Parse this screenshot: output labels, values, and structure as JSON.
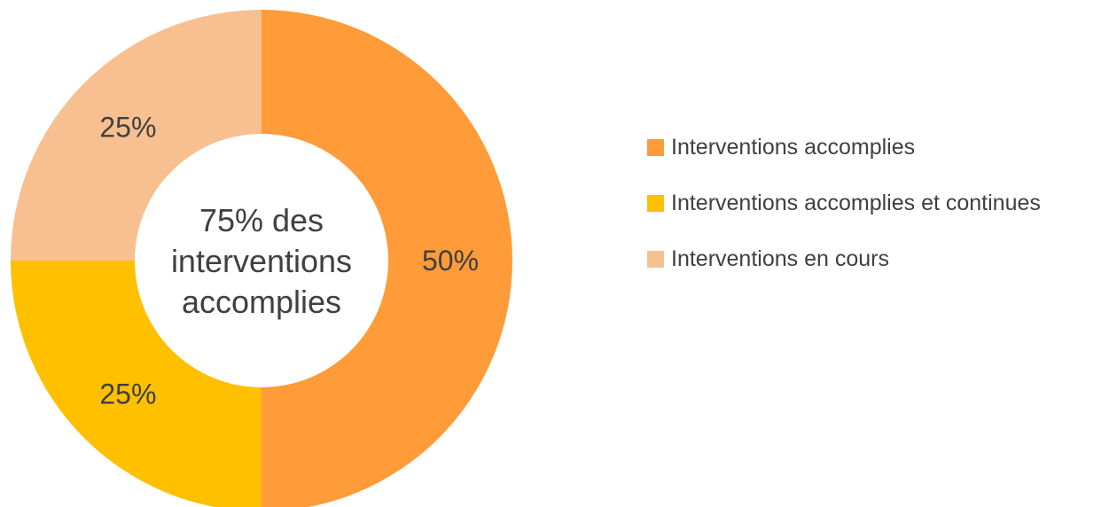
{
  "chart_data": {
    "type": "pie",
    "variant": "donut",
    "categories": [
      "Interventions accomplies",
      "Interventions accomplies et continues",
      "Interventions en cours"
    ],
    "values": [
      50,
      25,
      25
    ],
    "data_labels": [
      "50%",
      "25%",
      "25%"
    ],
    "colors": [
      "#FF9B38",
      "#FFC000",
      "#F8C090"
    ],
    "legend_position": "right",
    "center_text": [
      "75% des",
      "interventions",
      "accomplies"
    ]
  }
}
